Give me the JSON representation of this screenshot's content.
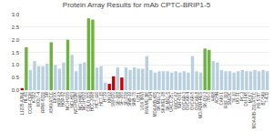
{
  "chart_data": {
    "type": "bar",
    "title": "Protein Array Results for mAb CPTC-BRIP1-5",
    "categories": [
      "L1235-A3N1",
      "HL-60",
      "CCRF-CEM",
      "K-562",
      "MOLT-4",
      "RPMI-8226",
      "SR",
      "A549/ATCC",
      "EKVX",
      "HOP-62",
      "HOP-92",
      "NCI-H226",
      "NCI-H23",
      "NCI-H322M",
      "NCI-H460",
      "NCI-H522",
      "COLO 205",
      "HCC-2998",
      "HCT-116",
      "HCT-15",
      "HT29",
      "KM12",
      "SW-620",
      "SF-268",
      "SF-295",
      "SF-539",
      "SNB-19",
      "SNB-75",
      "U251",
      "LOX IMVI",
      "MALME-3M",
      "M14",
      "MDA-MB-435",
      "SK-MEL-2",
      "SK-MEL-28",
      "SK-MEL-5",
      "UACC-257",
      "UACC-62",
      "IGR-OV1",
      "OVCAR-3",
      "OVCAR-4",
      "OVCAR-5",
      "OVCAR-8",
      "NCI/ADR-RES",
      "SK-OV-3",
      "786-0",
      "A498",
      "ACHN",
      "CAKI-1",
      "RXF 393",
      "SN12C",
      "TK-10",
      "UO-31",
      "PC-3",
      "DU-145",
      "MCF7",
      "MDA-MB-231/ATCC",
      "HS 578T",
      "BT-549",
      "T-47D"
    ],
    "values": [
      0.08,
      1.7,
      0.8,
      1.15,
      0.95,
      0.95,
      1.05,
      1.9,
      1.0,
      0.85,
      1.1,
      2.0,
      1.4,
      0.75,
      1.05,
      1.1,
      2.85,
      2.8,
      0.9,
      0.95,
      0.3,
      0.25,
      0.55,
      0.9,
      0.5,
      0.9,
      0.8,
      0.9,
      0.85,
      0.85,
      1.35,
      0.8,
      0.7,
      0.75,
      0.75,
      0.75,
      0.7,
      0.75,
      0.7,
      0.75,
      0.7,
      1.35,
      0.75,
      0.7,
      1.65,
      1.6,
      1.15,
      1.1,
      0.8,
      0.75,
      0.75,
      0.7,
      0.75,
      0.8,
      0.75,
      0.75,
      0.8,
      0.75,
      0.8,
      0.75
    ],
    "colors": [
      "#cc0000",
      "#6db33f",
      "#b8cfe0",
      "#b8cfe0",
      "#b8cfe0",
      "#b8cfe0",
      "#b8cfe0",
      "#6db33f",
      "#b8cfe0",
      "#b8cfe0",
      "#b8cfe0",
      "#6db33f",
      "#b8cfe0",
      "#b8cfe0",
      "#b8cfe0",
      "#b8cfe0",
      "#6db33f",
      "#6db33f",
      "#b8cfe0",
      "#b8cfe0",
      "#b8cfe0",
      "#cc0000",
      "#cc0000",
      "#b8cfe0",
      "#cc0000",
      "#b8cfe0",
      "#b8cfe0",
      "#b8cfe0",
      "#b8cfe0",
      "#b8cfe0",
      "#b8cfe0",
      "#b8cfe0",
      "#b8cfe0",
      "#b8cfe0",
      "#b8cfe0",
      "#b8cfe0",
      "#b8cfe0",
      "#b8cfe0",
      "#b8cfe0",
      "#b8cfe0",
      "#b8cfe0",
      "#b8cfe0",
      "#b8cfe0",
      "#b8cfe0",
      "#6db33f",
      "#6db33f",
      "#b8cfe0",
      "#b8cfe0",
      "#b8cfe0",
      "#b8cfe0",
      "#b8cfe0",
      "#b8cfe0",
      "#b8cfe0",
      "#b8cfe0",
      "#b8cfe0",
      "#b8cfe0",
      "#b8cfe0",
      "#b8cfe0",
      "#b8cfe0",
      "#b8cfe0"
    ],
    "ylim": [
      0.0,
      3.0
    ],
    "yticks": [
      {
        "value": 0.0,
        "label": "0.0"
      },
      0.5,
      {
        "value": 1.0,
        "label": "1.0"
      },
      1.5,
      {
        "value": 2.0,
        "label": "2.0"
      },
      2.5,
      {
        "value": 3.0,
        "label": "3.0"
      }
    ],
    "grid": true
  }
}
